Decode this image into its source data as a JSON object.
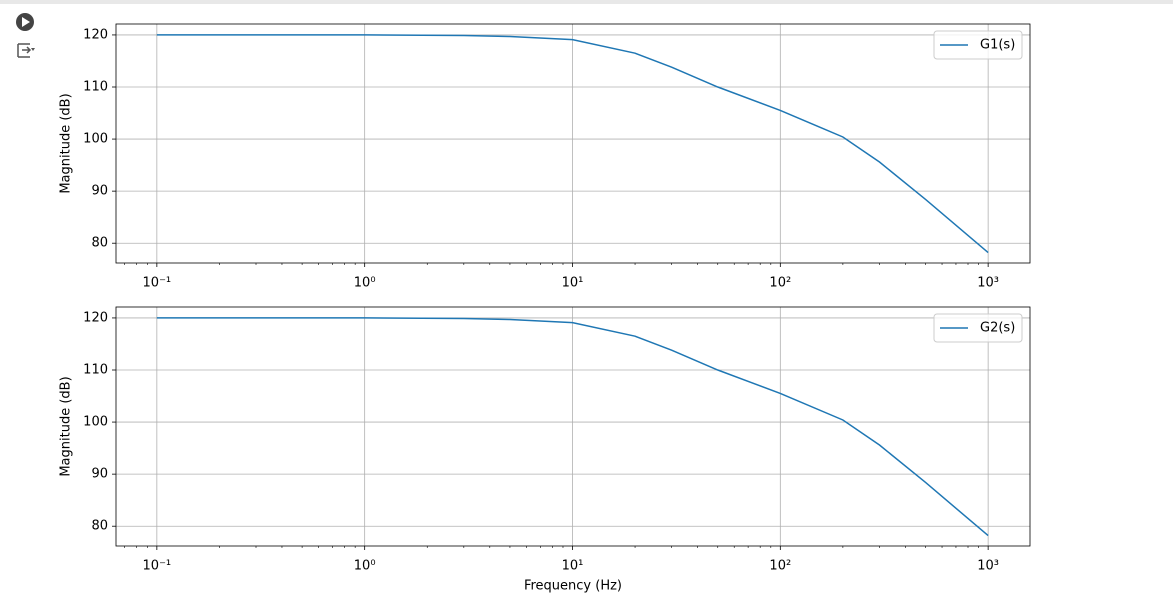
{
  "chart_data": [
    {
      "type": "line",
      "ylabel": "Magnitude (dB)",
      "xscale": "log",
      "grid": true,
      "minor_ticks": true,
      "legend": "upper right",
      "x": [
        0.1,
        1,
        3,
        5,
        10,
        20,
        30,
        50,
        100,
        200,
        300,
        500,
        1000
      ],
      "series": [
        {
          "name": "G1(s)",
          "color": "#1f77b4",
          "values": [
            120,
            120,
            119.9,
            119.7,
            119.1,
            116.5,
            113.8,
            110,
            105.5,
            100.4,
            95.6,
            88.4,
            78.2
          ]
        }
      ],
      "xlim": [
        0.0636,
        1590
      ],
      "ylim": [
        76.2,
        122.1
      ],
      "xticks": [
        {
          "value": 0.1,
          "label": "10⁻¹"
        },
        {
          "value": 1,
          "label": "10⁰"
        },
        {
          "value": 10,
          "label": "10¹"
        },
        {
          "value": 100,
          "label": "10²"
        },
        {
          "value": 1000,
          "label": "10³"
        }
      ],
      "yticks": [
        80,
        90,
        100,
        110,
        120
      ]
    },
    {
      "type": "line",
      "ylabel": "Magnitude (dB)",
      "xlabel": "Frequency (Hz)",
      "xscale": "log",
      "grid": true,
      "minor_ticks": true,
      "legend": "upper right",
      "x": [
        0.1,
        1,
        3,
        5,
        10,
        20,
        30,
        50,
        100,
        200,
        300,
        500,
        1000
      ],
      "series": [
        {
          "name": "G2(s)",
          "color": "#1f77b4",
          "values": [
            120,
            120,
            119.9,
            119.7,
            119.1,
            116.5,
            113.8,
            110,
            105.5,
            100.4,
            95.6,
            88.4,
            78.2
          ]
        }
      ],
      "xlim": [
        0.0636,
        1590
      ],
      "ylim": [
        76.2,
        122.1
      ],
      "xticks": [
        {
          "value": 0.1,
          "label": "10⁻¹"
        },
        {
          "value": 1,
          "label": "10⁰"
        },
        {
          "value": 10,
          "label": "10¹"
        },
        {
          "value": 100,
          "label": "10²"
        },
        {
          "value": 1000,
          "label": "10³"
        }
      ],
      "yticks": [
        80,
        90,
        100,
        110,
        120
      ]
    }
  ]
}
